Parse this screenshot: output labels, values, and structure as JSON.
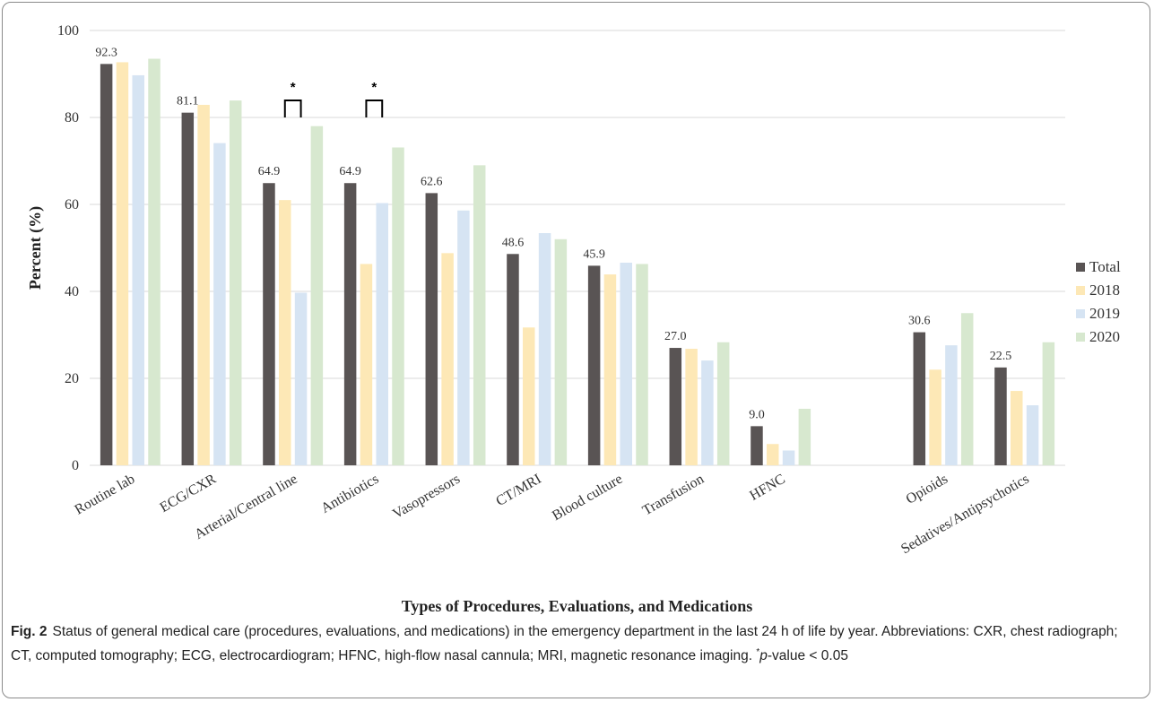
{
  "chart_data": {
    "type": "bar",
    "ylabel": "Percent (%)",
    "xlabel": "Types of Procedures, Evaluations, and Medications",
    "ylim": [
      0,
      100
    ],
    "yticks": [
      0,
      20,
      40,
      60,
      80,
      100
    ],
    "grid": true,
    "legend_position": "right",
    "categories": [
      "Routine lab",
      "ECG/CXR",
      "Arterial/Central line",
      "Antibiotics",
      "Vasopressors",
      "CT/MRI",
      "Blood culture",
      "Transfusion",
      "HFNC",
      "Opioids",
      "Sedatives/Antipsychotics"
    ],
    "group_gap_after": [
      8
    ],
    "series": [
      {
        "name": "Total",
        "color": "#595454",
        "values": [
          92.3,
          81.1,
          64.9,
          64.9,
          62.6,
          48.6,
          45.9,
          27.0,
          9.0,
          30.6,
          22.5
        ],
        "labels": [
          "92.3",
          "81.1",
          "64.9",
          "64.9",
          "62.6",
          "48.6",
          "45.9",
          "27.0",
          "9.0",
          "30.6",
          "22.5"
        ]
      },
      {
        "name": "2018",
        "color": "#fde8b6",
        "values": [
          92.7,
          82.9,
          61.0,
          46.3,
          48.8,
          31.7,
          43.9,
          26.8,
          4.9,
          22.0,
          17.1
        ]
      },
      {
        "name": "2019",
        "color": "#d6e4f3",
        "values": [
          89.7,
          74.1,
          39.7,
          60.3,
          58.6,
          53.4,
          46.6,
          24.1,
          3.4,
          27.6,
          13.8
        ]
      },
      {
        "name": "2020",
        "color": "#d7e8cf",
        "values": [
          93.5,
          83.9,
          78.0,
          73.1,
          69.0,
          52.0,
          46.3,
          28.3,
          13.0,
          35.0,
          28.3
        ]
      }
    ],
    "significance_brackets": [
      {
        "category": "Arterial/Central line",
        "symbol": "*",
        "bracket_at": 80
      },
      {
        "category": "Antibiotics",
        "symbol": "*",
        "bracket_at": 80
      }
    ]
  },
  "caption": {
    "label": "Fig. 2",
    "text": "Status of general medical care (procedures, evaluations, and medications) in the emergency department in the last 24 h of life by year. Abbreviations: CXR, chest radiograph; CT, computed tomography; ECG, electrocardiogram; HFNC, high-flow nasal cannula; MRI, magnetic resonance imaging.",
    "footnote_mark": "*",
    "footnote_p": "p",
    "footnote_rest": "-value < 0.05"
  }
}
